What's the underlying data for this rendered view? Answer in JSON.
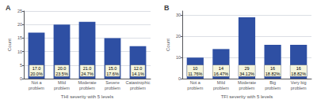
{
  "chart_data": [
    {
      "type": "bar",
      "title": "A",
      "categories": [
        "Not a\nproblem",
        "Mild\nproblem",
        "Moderate\nproblem",
        "Severe\nproblem",
        "Catastrophic\nproblem"
      ],
      "values": [
        17,
        20,
        21,
        15,
        12
      ],
      "value_labels": [
        "17.0\n20.0%",
        "20.0\n23.5%",
        "21.0\n24.7%",
        "15.0\n17.6%",
        "12.0\n14.1%"
      ],
      "xlabel": "THI severity with 5 levels",
      "ylabel": "Count",
      "ylim": [
        0,
        25
      ],
      "yticks": [
        0,
        5,
        10,
        15,
        20,
        25
      ],
      "color": "#2e4fa3",
      "grid": true,
      "data_labels": true
    },
    {
      "type": "bar",
      "title": "B",
      "categories": [
        "Not a\nproblem",
        "Mild\nproblem",
        "Moderate\nproblem",
        "Big\nproblem",
        "Very big\nproblem"
      ],
      "values": [
        10,
        14,
        29,
        16,
        16
      ],
      "value_labels": [
        "10\n11.76%",
        "14\n16.47%",
        "29\n34.12%",
        "16\n18.82%",
        "16\n18.82%"
      ],
      "xlabel": "TFI severity with 5 levels",
      "ylabel": "Count",
      "ylim": [
        0,
        32
      ],
      "yticks": [
        0,
        10,
        20,
        30
      ],
      "color": "#2e4fa3",
      "grid": true,
      "data_labels": true
    }
  ]
}
